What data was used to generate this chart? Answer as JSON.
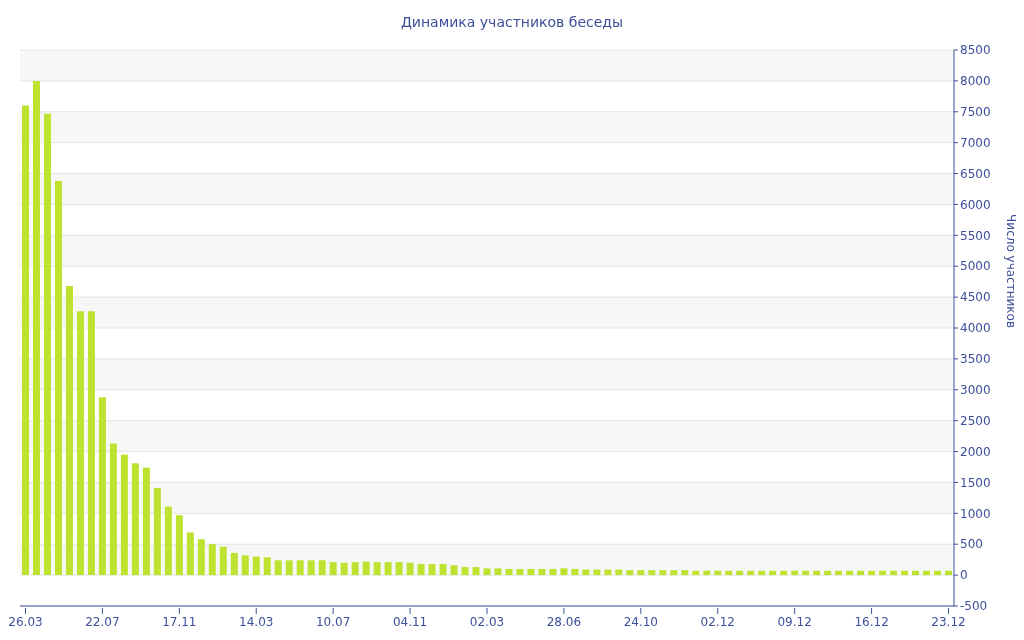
{
  "chart_data": {
    "type": "bar",
    "title": "Динамика участников беседы",
    "ylabel": "Число участников",
    "color": "#bde22f",
    "categories": [
      "26.03",
      null,
      null,
      null,
      null,
      null,
      null,
      "22.07",
      null,
      null,
      null,
      null,
      null,
      null,
      "17.11",
      null,
      null,
      null,
      null,
      null,
      null,
      "14.03",
      null,
      null,
      null,
      null,
      null,
      null,
      "10.07",
      null,
      null,
      null,
      null,
      null,
      null,
      "04.11",
      null,
      null,
      null,
      null,
      null,
      null,
      "02.03",
      null,
      null,
      null,
      null,
      null,
      null,
      "28.06",
      null,
      null,
      null,
      null,
      null,
      null,
      "24.10",
      null,
      null,
      null,
      null,
      null,
      null,
      "02.12",
      null,
      null,
      null,
      null,
      null,
      null,
      "09.12",
      null,
      null,
      null,
      null,
      null,
      null,
      "16.12",
      null,
      null,
      null,
      null,
      null,
      null,
      "23.12"
    ],
    "values": [
      7600,
      8000,
      7470,
      6380,
      4680,
      4270,
      4270,
      2880,
      2130,
      1950,
      1810,
      1740,
      1410,
      1110,
      970,
      690,
      580,
      500,
      460,
      360,
      320,
      300,
      290,
      240,
      240,
      240,
      240,
      240,
      210,
      200,
      210,
      220,
      210,
      210,
      210,
      200,
      180,
      180,
      180,
      160,
      130,
      130,
      110,
      110,
      100,
      100,
      100,
      100,
      100,
      110,
      100,
      90,
      90,
      90,
      90,
      80,
      80,
      80,
      80,
      80,
      80,
      70,
      70,
      70,
      70,
      70,
      70,
      70,
      70,
      70,
      70,
      70,
      70,
      70,
      70,
      70,
      70,
      70,
      70,
      70,
      70,
      70,
      70,
      70,
      70
    ],
    "ylim": [
      -500,
      8500
    ],
    "yticks": [
      -500,
      0,
      500,
      1000,
      1500,
      2000,
      2500,
      3000,
      3500,
      4000,
      4500,
      5000,
      5500,
      6000,
      6500,
      7000,
      7500,
      8000,
      8500
    ],
    "grid": "y"
  }
}
